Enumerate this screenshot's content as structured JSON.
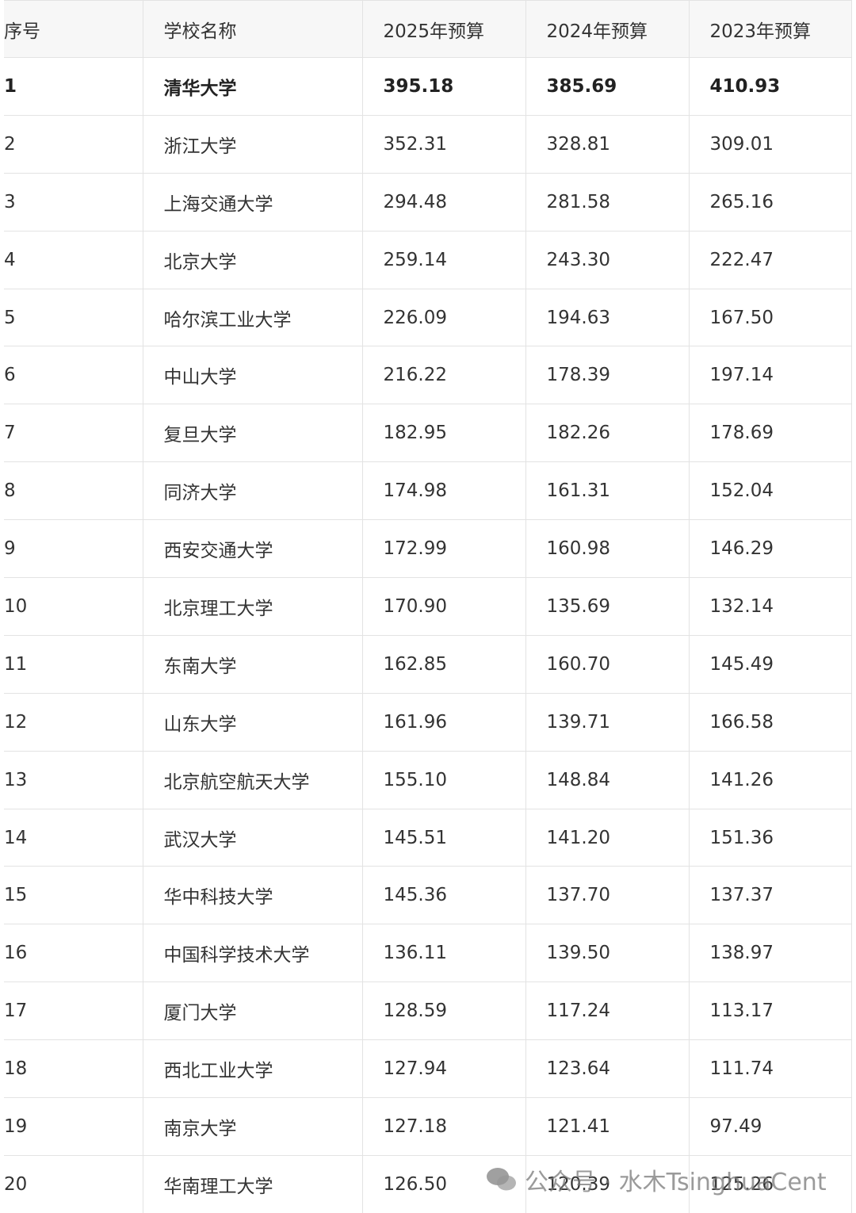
{
  "table": {
    "header": [
      "序号",
      "学校名称",
      "2025年预算",
      "2024年预算",
      "2023年预算"
    ],
    "rows": [
      [
        "1",
        "清华大学",
        "395.18",
        "385.69",
        "410.93"
      ],
      [
        "2",
        "浙江大学",
        "352.31",
        "328.81",
        "309.01"
      ],
      [
        "3",
        "上海交通大学",
        "294.48",
        "281.58",
        "265.16"
      ],
      [
        "4",
        "北京大学",
        "259.14",
        "243.30",
        "222.47"
      ],
      [
        "5",
        "哈尔滨工业大学",
        "226.09",
        "194.63",
        "167.50"
      ],
      [
        "6",
        "中山大学",
        "216.22",
        "178.39",
        "197.14"
      ],
      [
        "7",
        "复旦大学",
        "182.95",
        "182.26",
        "178.69"
      ],
      [
        "8",
        "同济大学",
        "174.98",
        "161.31",
        "152.04"
      ],
      [
        "9",
        "西安交通大学",
        "172.99",
        "160.98",
        "146.29"
      ],
      [
        "10",
        "北京理工大学",
        "170.90",
        "135.69",
        "132.14"
      ],
      [
        "11",
        "东南大学",
        "162.85",
        "160.70",
        "145.49"
      ],
      [
        "12",
        "山东大学",
        "161.96",
        "139.71",
        "166.58"
      ],
      [
        "13",
        "北京航空航天大学",
        "155.10",
        "148.84",
        "141.26"
      ],
      [
        "14",
        "武汉大学",
        "145.51",
        "141.20",
        "151.36"
      ],
      [
        "15",
        "华中科技大学",
        "145.36",
        "137.70",
        "137.37"
      ],
      [
        "16",
        "中国科学技术大学",
        "136.11",
        "139.50",
        "138.97"
      ],
      [
        "17",
        "厦门大学",
        "128.59",
        "117.24",
        "113.17"
      ],
      [
        "18",
        "西北工业大学",
        "127.94",
        "123.64",
        "111.74"
      ],
      [
        "19",
        "南京大学",
        "127.18",
        "121.41",
        "97.49"
      ],
      [
        "20",
        "华南理工大学",
        "126.50",
        "120.39",
        "125.26"
      ]
    ]
  },
  "watermark": "公众号 · 水木TsinghuaCent"
}
